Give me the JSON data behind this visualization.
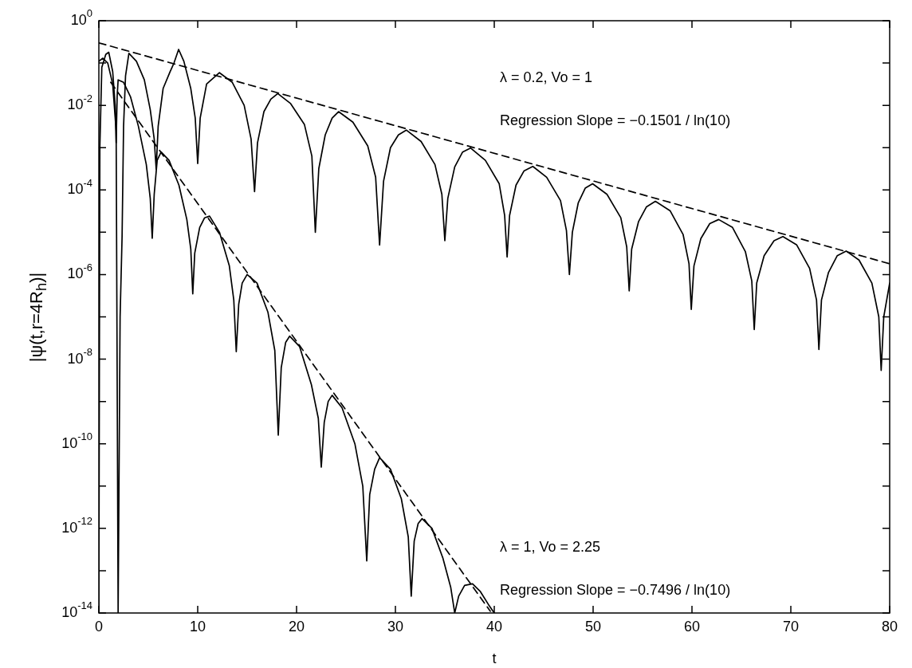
{
  "chart_data": {
    "type": "line",
    "xlabel": "t",
    "ylabel": "|ψ(t,r=4R$_{h}$)|",
    "log": "y",
    "xlim": [
      0,
      80
    ],
    "xticks": [
      0,
      10,
      20,
      30,
      40,
      50,
      60,
      70,
      80
    ],
    "ylim": [
      1e-14,
      1
    ],
    "yticks": [
      {
        "value": 1,
        "label": "10$^{0}$"
      },
      {
        "value": 0.1,
        "label": null
      },
      {
        "value": 0.01,
        "label": "10$^{-2}$"
      },
      {
        "value": 0.001,
        "label": null
      },
      {
        "value": 0.0001,
        "label": "10$^{-4}$"
      },
      {
        "value": 1e-05,
        "label": null
      },
      {
        "value": 1e-06,
        "label": "10$^{-6}$"
      },
      {
        "value": 1e-07,
        "label": null
      },
      {
        "value": 1e-08,
        "label": "10$^{-8}$"
      },
      {
        "value": 1e-09,
        "label": null
      },
      {
        "value": 1e-10,
        "label": "10$^{-10}$"
      },
      {
        "value": 1e-11,
        "label": null
      },
      {
        "value": 1e-12,
        "label": "10$^{-12}$"
      },
      {
        "value": 1e-13,
        "label": null
      },
      {
        "value": 1e-14,
        "label": "10$^{-14}$"
      }
    ],
    "marker": "none",
    "line_style": "solid",
    "annotations": [
      "λ = 0.2, Vo = 1",
      "Regression Slope = −0.1501 / ln(10)",
      "λ = 1, Vo = 2.25",
      "Regression Slope = −0.7496 / ln(10)"
    ],
    "series": [
      {
        "color": "#000000",
        "x": [
          0,
          0.4,
          0.9,
          1.4,
          1.75,
          1.95,
          2.15,
          2.35,
          2.5,
          2.7,
          3.04,
          3.8,
          4.6,
          5.2,
          5.6,
          5.8,
          6.0,
          6.5,
          7.2,
          7.6,
          8.07,
          8.6,
          9.3,
          9.75,
          10.0,
          10.25,
          10.9,
          12.2,
          13.5,
          14.7,
          15.4,
          15.75,
          16.05,
          16.7,
          17.4,
          18.1,
          19.4,
          20.8,
          21.55,
          21.9,
          22.25,
          22.9,
          23.6,
          24.25,
          25.7,
          27.2,
          28.0,
          28.4,
          28.8,
          29.5,
          30.3,
          31.1,
          32.6,
          34.0,
          34.7,
          35.0,
          35.3,
          36.0,
          36.8,
          37.6,
          39.1,
          40.5,
          41.05,
          41.3,
          41.55,
          42.2,
          43.0,
          43.9,
          45.3,
          46.7,
          47.3,
          47.6,
          47.9,
          48.5,
          49.2,
          49.95,
          51.4,
          52.8,
          53.4,
          53.65,
          53.9,
          54.6,
          55.4,
          56.3,
          57.8,
          59.1,
          59.7,
          59.93,
          60.2,
          60.9,
          61.8,
          62.7,
          64.1,
          65.4,
          66.05,
          66.3,
          66.55,
          67.3,
          68.3,
          69.2,
          70.6,
          71.9,
          72.6,
          72.84,
          73.1,
          73.8,
          74.7,
          75.6,
          76.9,
          78.2,
          78.9,
          79.14,
          79.4,
          80
        ],
        "values": [
          0.11,
          0.13,
          0.1,
          0.032,
          0.0025,
          1e-14,
          1e-07,
          7.9e-06,
          0.0032,
          0.05,
          0.17,
          0.11,
          0.04,
          0.0079,
          0.0016,
          0.00031,
          0.0032,
          0.025,
          0.062,
          0.1,
          0.21,
          0.11,
          0.025,
          0.005,
          0.00042,
          0.005,
          0.032,
          0.059,
          0.035,
          0.01,
          0.0016,
          9.1e-05,
          0.0013,
          0.0071,
          0.014,
          0.019,
          0.011,
          0.0035,
          0.00063,
          1e-05,
          0.00032,
          0.002,
          0.005,
          0.0071,
          0.004,
          0.0011,
          0.0002,
          5e-06,
          0.00016,
          0.001,
          0.002,
          0.0026,
          0.0014,
          0.0004,
          7.9e-05,
          6.3e-06,
          6.3e-05,
          0.00035,
          0.00079,
          0.00098,
          0.0005,
          0.00014,
          2.5e-05,
          2.6e-06,
          2.5e-05,
          0.00013,
          0.00028,
          0.00036,
          0.0002,
          5.6e-05,
          1.1e-05,
          1e-06,
          1e-05,
          5e-05,
          0.00011,
          0.00014,
          7.9e-05,
          2.2e-05,
          4.5e-06,
          4.1e-07,
          4e-06,
          1.8e-05,
          4e-05,
          5.4e-05,
          3.2e-05,
          8.9e-06,
          1.8e-06,
          1.5e-07,
          1.6e-06,
          7.1e-06,
          1.6e-05,
          2e-05,
          1.3e-05,
          3.5e-06,
          7.1e-07,
          5e-08,
          6.3e-07,
          2.8e-06,
          6.3e-06,
          7.9e-06,
          5e-06,
          1.4e-06,
          2.5e-07,
          1.7e-08,
          2.5e-07,
          1.1e-06,
          2.8e-06,
          3.6e-06,
          2.2e-06,
          6.3e-07,
          1e-07,
          5.4e-09,
          1e-07,
          6.3e-07
        ]
      },
      {
        "color": "#000000",
        "x": [
          0,
          0.1,
          0.3,
          0.7,
          1.0,
          1.4,
          1.65,
          1.75,
          1.85,
          1.95,
          2.5,
          3.2,
          4.0,
          4.8,
          5.2,
          5.4,
          5.6,
          5.9,
          6.3,
          7.1,
          8.1,
          8.9,
          9.3,
          9.5,
          9.7,
          10.2,
          10.7,
          11.2,
          12.2,
          13.2,
          13.65,
          13.9,
          14.15,
          14.5,
          15.0,
          16.0,
          17.1,
          17.8,
          18.15,
          18.45,
          18.9,
          19.3,
          20.3,
          21.5,
          22.2,
          22.5,
          22.8,
          23.2,
          23.6,
          24.6,
          25.9,
          26.7,
          27.1,
          27.4,
          27.9,
          28.4,
          29.5,
          30.6,
          31.3,
          31.6,
          31.9,
          32.3,
          32.7,
          33.7,
          34.8,
          35.6,
          36.0,
          36.4,
          37.0,
          37.8,
          38.6,
          39.4,
          40.0
        ],
        "values": [
          1e-14,
          0.001,
          0.079,
          0.16,
          0.18,
          0.063,
          0.01,
          0.0013,
          0.016,
          0.04,
          0.035,
          0.016,
          0.0032,
          0.0004,
          6.3e-05,
          7.2e-06,
          7.9e-05,
          0.0005,
          0.00079,
          0.0005,
          0.00013,
          2e-05,
          4e-06,
          3.5e-07,
          3.2e-06,
          1.3e-05,
          2.2e-05,
          2.4e-05,
          1e-05,
          1.6e-06,
          2.5e-07,
          1.5e-08,
          2e-07,
          6.3e-07,
          1e-06,
          6.3e-07,
          1.3e-07,
          1.6e-08,
          1.6e-10,
          6.3e-09,
          2.5e-08,
          3.5e-08,
          2e-08,
          2.5e-09,
          4e-10,
          2.8e-11,
          3.2e-10,
          1e-09,
          1.4e-09,
          7.1e-10,
          1e-10,
          1e-11,
          1.7e-13,
          6.3e-12,
          2.5e-11,
          4.7e-11,
          2.5e-11,
          5e-12,
          6.3e-13,
          2.5e-14,
          5e-13,
          1.3e-12,
          1.7e-12,
          1e-12,
          2e-13,
          4e-14,
          1e-14,
          2.5e-14,
          4.5e-14,
          4.9e-14,
          3.2e-14,
          1.6e-14,
          1e-14
        ]
      },
      {
        "color": "#000000",
        "line_style": "dashed",
        "x": [
          0,
          80
        ],
        "values": [
          0.3,
          1.8e-06
        ]
      },
      {
        "color": "#000000",
        "line_style": "dashed",
        "x": [
          1.2,
          39.6
        ],
        "values": [
          0.035,
          1.1e-14
        ]
      }
    ]
  }
}
